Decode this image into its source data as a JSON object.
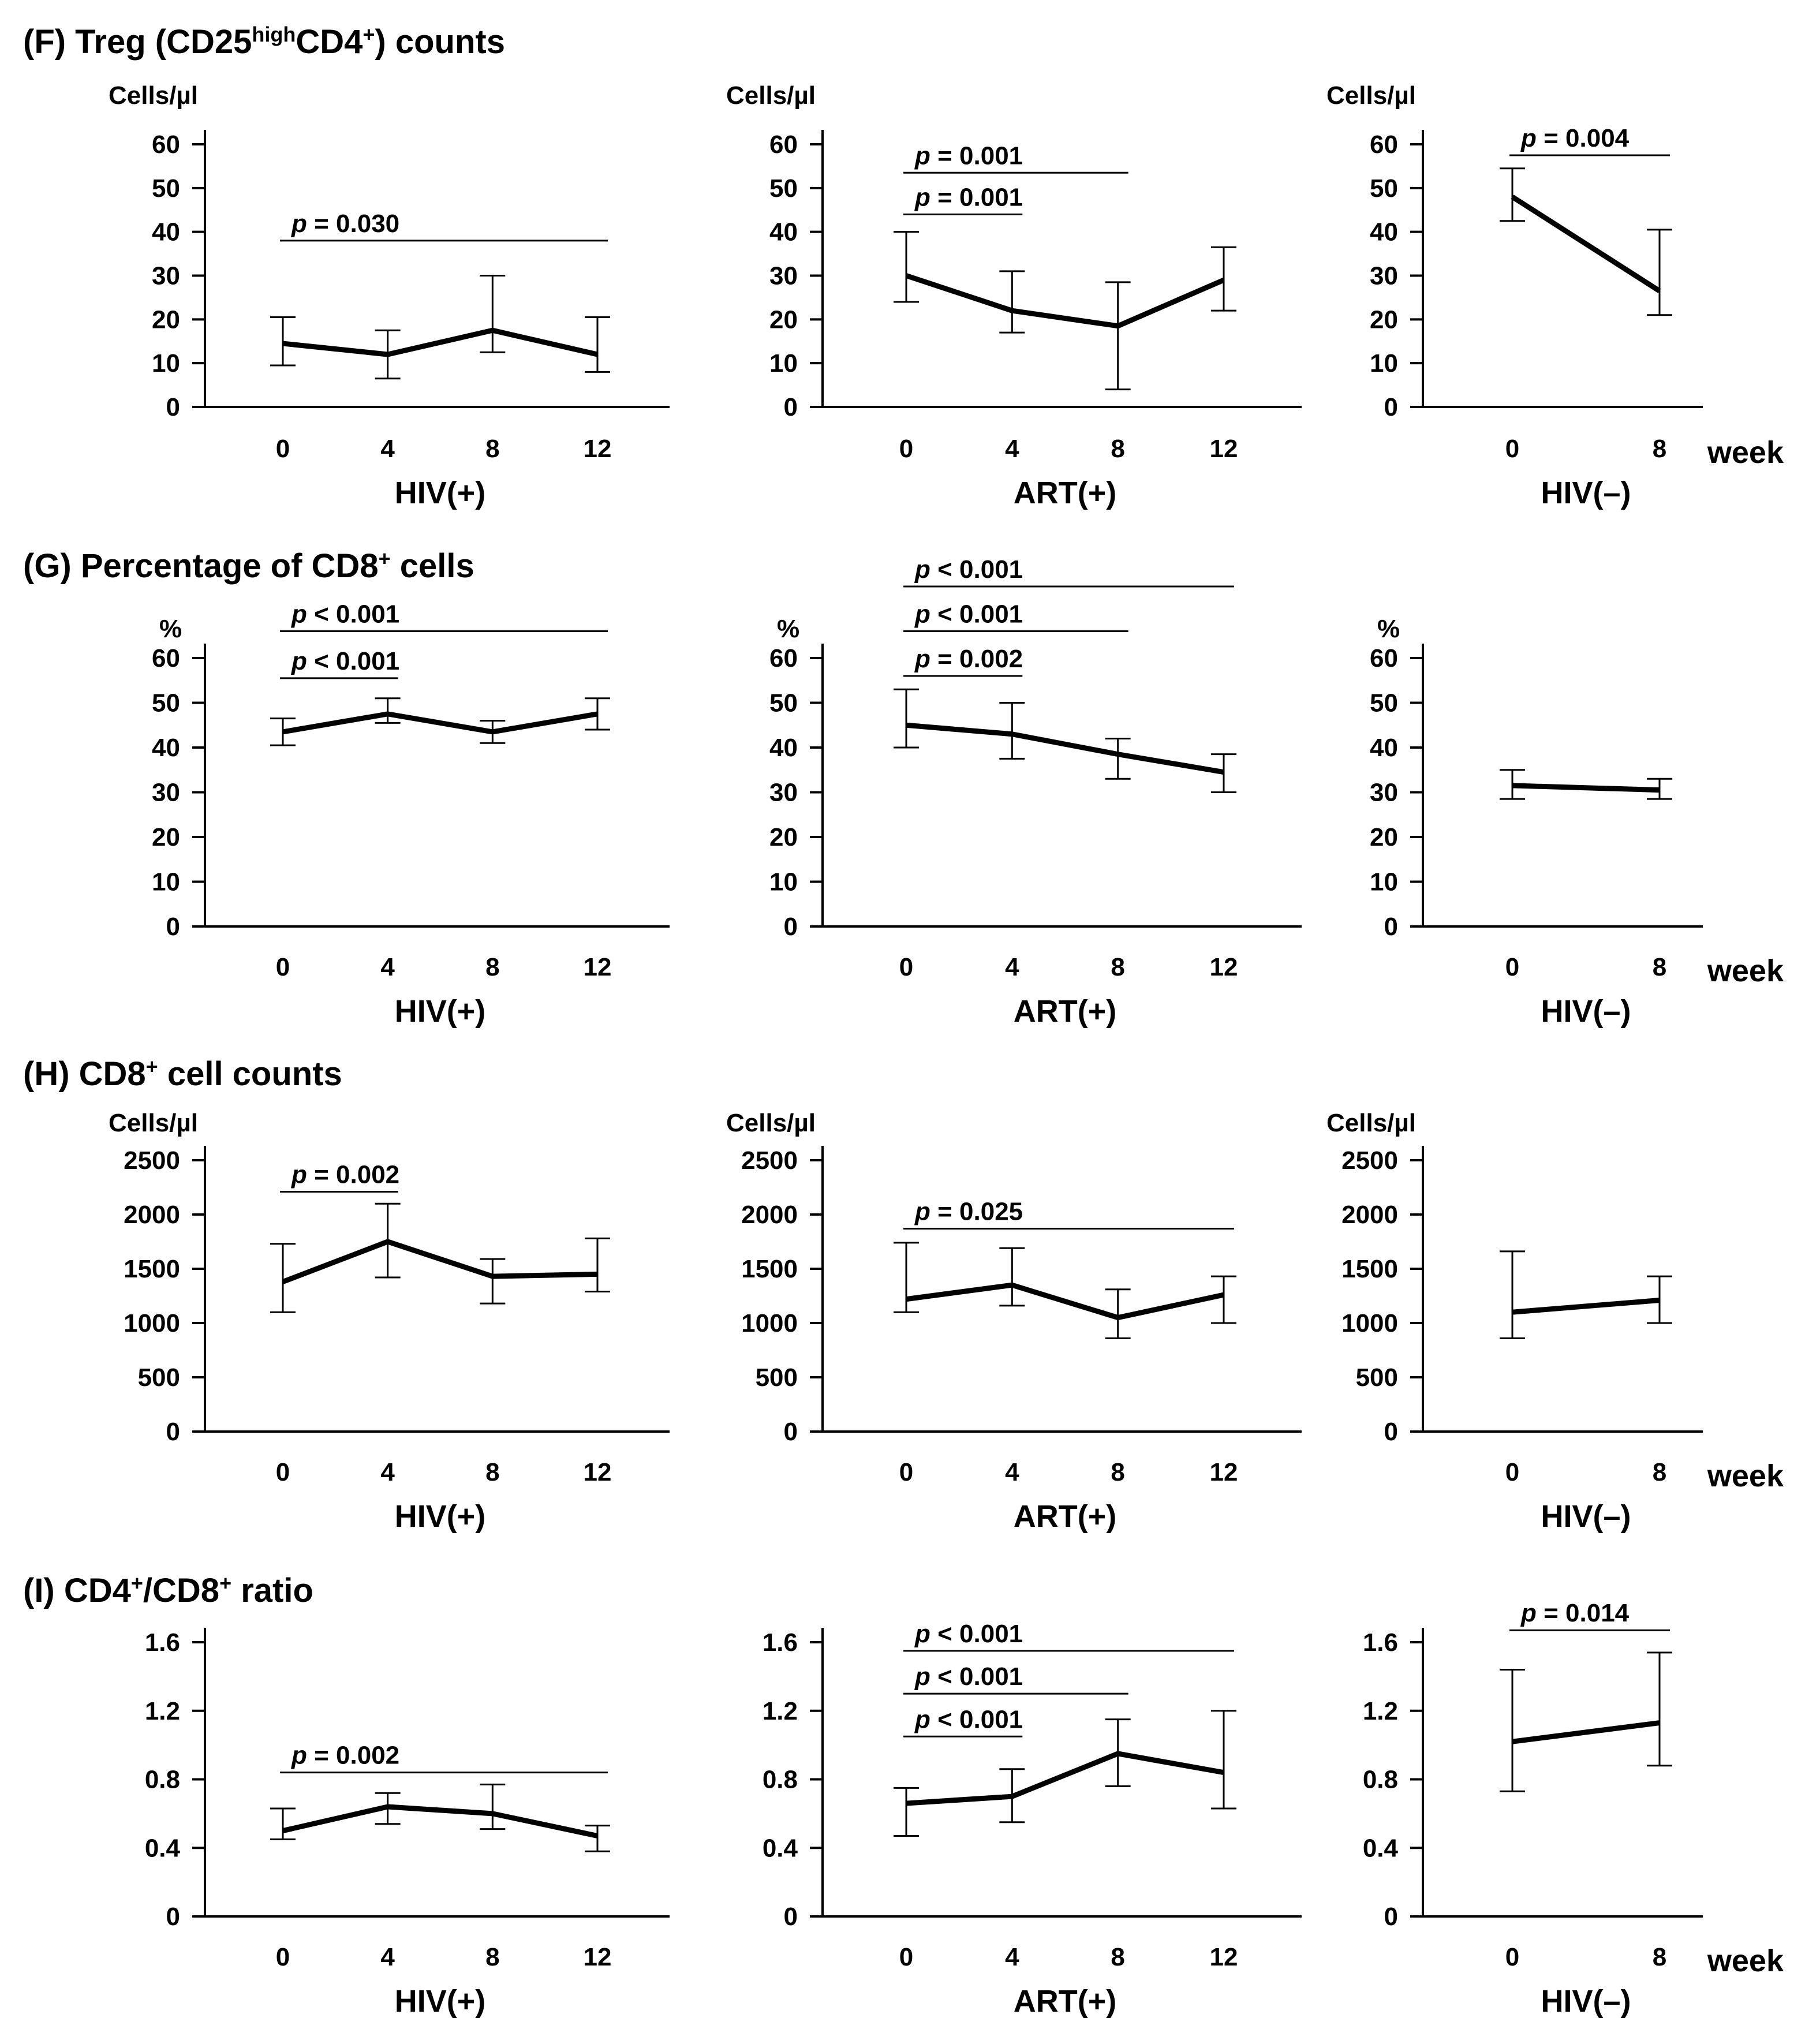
{
  "chart_data": [
    {
      "section": "F",
      "title": "(F) Treg (CD25highCD4+) counts",
      "title_parts": {
        "prefix": "(F) Treg (CD25",
        "sup1": "high",
        "mid": "CD4",
        "sup2": "+",
        "suffix": ") counts"
      },
      "panels": [
        {
          "id": "F-hiv-pos",
          "type": "line",
          "xlabel": "HIV(+)",
          "ylabel": "Cells/µl",
          "ylim": [
            0,
            60
          ],
          "yticks": [
            0,
            10,
            20,
            30,
            40,
            50,
            60
          ],
          "ytick_labels": [
            "0",
            "10",
            "20",
            "30",
            "40",
            "50",
            "60"
          ],
          "xticks": [
            "0",
            "4",
            "8",
            "12"
          ],
          "x": [
            0,
            4,
            8,
            12
          ],
          "values": [
            14.5,
            12,
            17.5,
            12
          ],
          "err_low": [
            9.5,
            6.5,
            12.5,
            8
          ],
          "err_high": [
            20.5,
            17.5,
            30,
            20.5
          ],
          "pvalues": [
            {
              "label": "= 0.030",
              "from": 0,
              "to": 12,
              "y": 38
            }
          ]
        },
        {
          "id": "F-art-pos",
          "type": "line",
          "xlabel": "ART(+)",
          "ylabel": "Cells/µl",
          "ylim": [
            0,
            60
          ],
          "yticks": [
            0,
            10,
            20,
            30,
            40,
            50,
            60
          ],
          "ytick_labels": [
            "0",
            "10",
            "20",
            "30",
            "40",
            "50",
            "60"
          ],
          "xticks": [
            "0",
            "4",
            "8",
            "12"
          ],
          "x": [
            0,
            4,
            8,
            12
          ],
          "values": [
            30,
            22,
            18.5,
            29
          ],
          "err_low": [
            24,
            17,
            4,
            22
          ],
          "err_high": [
            40,
            31,
            28.5,
            36.5
          ],
          "pvalues": [
            {
              "label": "= 0.001",
              "from": 0,
              "to": 8,
              "y": 53.5
            },
            {
              "label": "= 0.001",
              "from": 0,
              "to": 4,
              "y": 44
            }
          ]
        },
        {
          "id": "F-hiv-neg",
          "type": "line",
          "xlabel": "HIV(–)",
          "ylabel": "Cells/µl",
          "ylim": [
            0,
            60
          ],
          "yticks": [
            0,
            10,
            20,
            30,
            40,
            50,
            60
          ],
          "ytick_labels": [
            "0",
            "10",
            "20",
            "30",
            "40",
            "50",
            "60"
          ],
          "xticks": [
            "0",
            "8"
          ],
          "x": [
            0,
            8
          ],
          "values": [
            48,
            26.5
          ],
          "err_low": [
            42.5,
            21
          ],
          "err_high": [
            54.5,
            40.5
          ],
          "pvalues": [
            {
              "label": "= 0.004",
              "from": 0,
              "to": 8,
              "y": 57.5
            }
          ],
          "week_label": "week"
        }
      ]
    },
    {
      "section": "G",
      "title": "(G) Percentage of CD8+ cells",
      "title_parts": {
        "prefix": "(G) Percentage of CD8",
        "sup1": "+",
        "mid": "",
        "sup2": "",
        "suffix": " cells"
      },
      "panels": [
        {
          "id": "G-hiv-pos",
          "type": "line",
          "xlabel": "HIV(+)",
          "ylabel": "%",
          "ylim": [
            0,
            60
          ],
          "yticks": [
            0,
            10,
            20,
            30,
            40,
            50,
            60
          ],
          "ytick_labels": [
            "0",
            "10",
            "20",
            "30",
            "40",
            "50",
            "60"
          ],
          "xticks": [
            "0",
            "4",
            "8",
            "12"
          ],
          "x": [
            0,
            4,
            8,
            12
          ],
          "values": [
            43.5,
            47.5,
            43.5,
            47.5
          ],
          "err_low": [
            40.5,
            45.5,
            41,
            44
          ],
          "err_high": [
            46.5,
            51,
            46,
            51
          ],
          "pvalues": [
            {
              "label": "< 0.001",
              "from": 0,
              "to": 12,
              "y": 66
            },
            {
              "label": "< 0.001",
              "from": 0,
              "to": 4,
              "y": 55.5
            }
          ]
        },
        {
          "id": "G-art-pos",
          "type": "line",
          "xlabel": "ART(+)",
          "ylabel": "%",
          "ylim": [
            0,
            60
          ],
          "yticks": [
            0,
            10,
            20,
            30,
            40,
            50,
            60
          ],
          "ytick_labels": [
            "0",
            "10",
            "20",
            "30",
            "40",
            "50",
            "60"
          ],
          "xticks": [
            "0",
            "4",
            "8",
            "12"
          ],
          "x": [
            0,
            4,
            8,
            12
          ],
          "values": [
            45,
            43,
            38.5,
            34.5
          ],
          "err_low": [
            40,
            37.5,
            33,
            30
          ],
          "err_high": [
            53,
            50,
            42,
            38.5
          ],
          "pvalues": [
            {
              "label": "< 0.001",
              "from": 0,
              "to": 12,
              "y": 76
            },
            {
              "label": "< 0.001",
              "from": 0,
              "to": 8,
              "y": 66
            },
            {
              "label": "= 0.002",
              "from": 0,
              "to": 4,
              "y": 56
            }
          ]
        },
        {
          "id": "G-hiv-neg",
          "type": "line",
          "xlabel": "HIV(–)",
          "ylabel": "%",
          "ylim": [
            0,
            60
          ],
          "yticks": [
            0,
            10,
            20,
            30,
            40,
            50,
            60
          ],
          "ytick_labels": [
            "0",
            "10",
            "20",
            "30",
            "40",
            "50",
            "60"
          ],
          "xticks": [
            "0",
            "8"
          ],
          "x": [
            0,
            8
          ],
          "values": [
            31.5,
            30.5
          ],
          "err_low": [
            28.5,
            28.5
          ],
          "err_high": [
            35,
            33
          ],
          "pvalues": [],
          "week_label": "week"
        }
      ]
    },
    {
      "section": "H",
      "title": "(H) CD8+ cell counts",
      "title_parts": {
        "prefix": "(H) CD8",
        "sup1": "+",
        "mid": "",
        "sup2": "",
        "suffix": " cell counts"
      },
      "panels": [
        {
          "id": "H-hiv-pos",
          "type": "line",
          "xlabel": "HIV(+)",
          "ylabel": "Cells/µl",
          "ylim": [
            0,
            2500
          ],
          "yticks": [
            0,
            500,
            1000,
            1500,
            2000,
            2500
          ],
          "ytick_labels": [
            "0",
            "500",
            "1000",
            "1500",
            "2000",
            "2500"
          ],
          "xticks": [
            "0",
            "4",
            "8",
            "12"
          ],
          "x": [
            0,
            4,
            8,
            12
          ],
          "values": [
            1380,
            1750,
            1430,
            1450
          ],
          "err_low": [
            1100,
            1420,
            1180,
            1290
          ],
          "err_high": [
            1730,
            2100,
            1590,
            1780
          ],
          "pvalues": [
            {
              "label": "= 0.002",
              "from": 0,
              "to": 4,
              "y": 2210
            }
          ]
        },
        {
          "id": "H-art-pos",
          "type": "line",
          "xlabel": "ART(+)",
          "ylabel": "Cells/µl",
          "ylim": [
            0,
            2500
          ],
          "yticks": [
            0,
            500,
            1000,
            1500,
            2000,
            2500
          ],
          "ytick_labels": [
            "0",
            "500",
            "1000",
            "1500",
            "2000",
            "2500"
          ],
          "xticks": [
            "0",
            "4",
            "8",
            "12"
          ],
          "x": [
            0,
            4,
            8,
            12
          ],
          "values": [
            1220,
            1350,
            1050,
            1260
          ],
          "err_low": [
            1100,
            1160,
            860,
            1000
          ],
          "err_high": [
            1740,
            1690,
            1310,
            1430
          ],
          "pvalues": [
            {
              "label": "= 0.025",
              "from": 0,
              "to": 12,
              "y": 1870
            }
          ]
        },
        {
          "id": "H-hiv-neg",
          "type": "line",
          "xlabel": "HIV(–)",
          "ylabel": "Cells/µl",
          "ylim": [
            0,
            2500
          ],
          "yticks": [
            0,
            500,
            1000,
            1500,
            2000,
            2500
          ],
          "ytick_labels": [
            "0",
            "500",
            "1000",
            "1500",
            "2000",
            "2500"
          ],
          "xticks": [
            "0",
            "8"
          ],
          "x": [
            0,
            8
          ],
          "values": [
            1100,
            1210
          ],
          "err_low": [
            860,
            1000
          ],
          "err_high": [
            1660,
            1430
          ],
          "pvalues": [],
          "week_label": "week"
        }
      ]
    },
    {
      "section": "I",
      "title": "(I) CD4+/CD8+ ratio",
      "title_parts": {
        "prefix": "(I) CD4",
        "sup1": "+",
        "mid": "/CD8",
        "sup2": "+",
        "suffix": " ratio"
      },
      "panels": [
        {
          "id": "I-hiv-pos",
          "type": "line",
          "xlabel": "HIV(+)",
          "ylabel": "",
          "ylim": [
            0,
            1.6
          ],
          "yticks": [
            0,
            0.4,
            0.8,
            1.2,
            1.6
          ],
          "ytick_labels": [
            "0",
            "0.4",
            "0.8",
            "1.2",
            "1.6"
          ],
          "xticks": [
            "0",
            "4",
            "8",
            "12"
          ],
          "x": [
            0,
            4,
            8,
            12
          ],
          "values": [
            0.5,
            0.64,
            0.6,
            0.47
          ],
          "err_low": [
            0.45,
            0.54,
            0.51,
            0.38
          ],
          "err_high": [
            0.63,
            0.72,
            0.77,
            0.53
          ],
          "pvalues": [
            {
              "label": "= 0.002",
              "from": 0,
              "to": 12,
              "y": 0.84
            }
          ]
        },
        {
          "id": "I-art-pos",
          "type": "line",
          "xlabel": "ART(+)",
          "ylabel": "",
          "ylim": [
            0,
            1.6
          ],
          "yticks": [
            0,
            0.4,
            0.8,
            1.2,
            1.6
          ],
          "ytick_labels": [
            "0",
            "0.4",
            "0.8",
            "1.2",
            "1.6"
          ],
          "xticks": [
            "0",
            "4",
            "8",
            "12"
          ],
          "x": [
            0,
            4,
            8,
            12
          ],
          "values": [
            0.66,
            0.7,
            0.95,
            0.84
          ],
          "err_low": [
            0.47,
            0.55,
            0.76,
            0.63
          ],
          "err_high": [
            0.75,
            0.86,
            1.15,
            1.2
          ],
          "pvalues": [
            {
              "label": "< 0.001",
              "from": 0,
              "to": 12,
              "y": 1.55
            },
            {
              "label": "< 0.001",
              "from": 0,
              "to": 8,
              "y": 1.3
            },
            {
              "label": "< 0.001",
              "from": 0,
              "to": 4,
              "y": 1.05
            }
          ]
        },
        {
          "id": "I-hiv-neg",
          "type": "line",
          "xlabel": "HIV(–)",
          "ylabel": "",
          "ylim": [
            0,
            1.6
          ],
          "yticks": [
            0,
            0.4,
            0.8,
            1.2,
            1.6
          ],
          "ytick_labels": [
            "0",
            "0.4",
            "0.8",
            "1.2",
            "1.6"
          ],
          "xticks": [
            "0",
            "8"
          ],
          "x": [
            0,
            8
          ],
          "values": [
            1.02,
            1.13
          ],
          "err_low": [
            0.73,
            0.88
          ],
          "err_high": [
            1.44,
            1.54
          ],
          "pvalues": [
            {
              "label": "= 0.014",
              "from": 0,
              "to": 8,
              "y": 1.67
            }
          ],
          "week_label": "week"
        }
      ]
    }
  ]
}
